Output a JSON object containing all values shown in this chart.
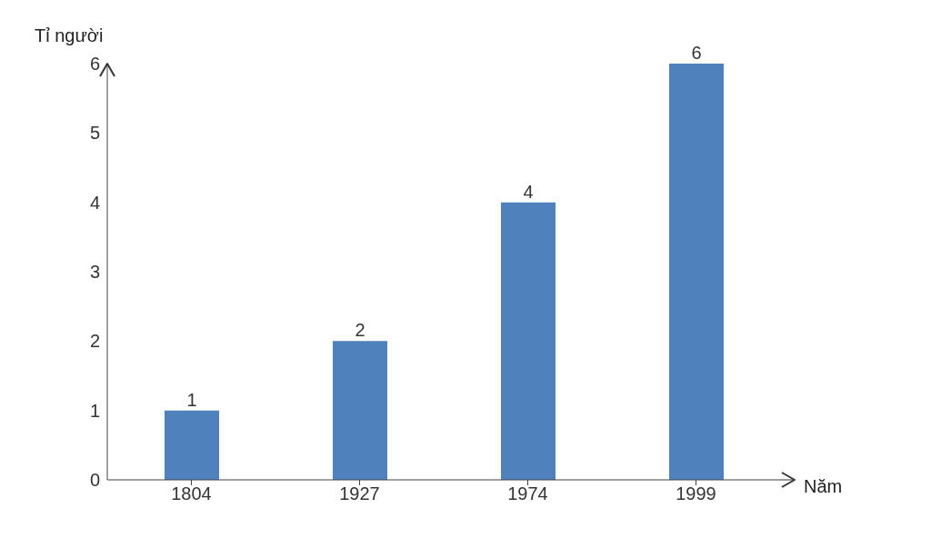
{
  "chart_data": {
    "type": "bar",
    "xlabel": "Năm",
    "ylabel": "Tỉ người",
    "categories": [
      "1804",
      "1927",
      "1974",
      "1999"
    ],
    "values": [
      1,
      2,
      4,
      6
    ],
    "color": "#4f81bd",
    "ylim": [
      0,
      6
    ],
    "yticks": [
      0,
      1,
      2,
      3,
      4,
      5,
      6
    ],
    "grid": false,
    "data_labels": true
  }
}
